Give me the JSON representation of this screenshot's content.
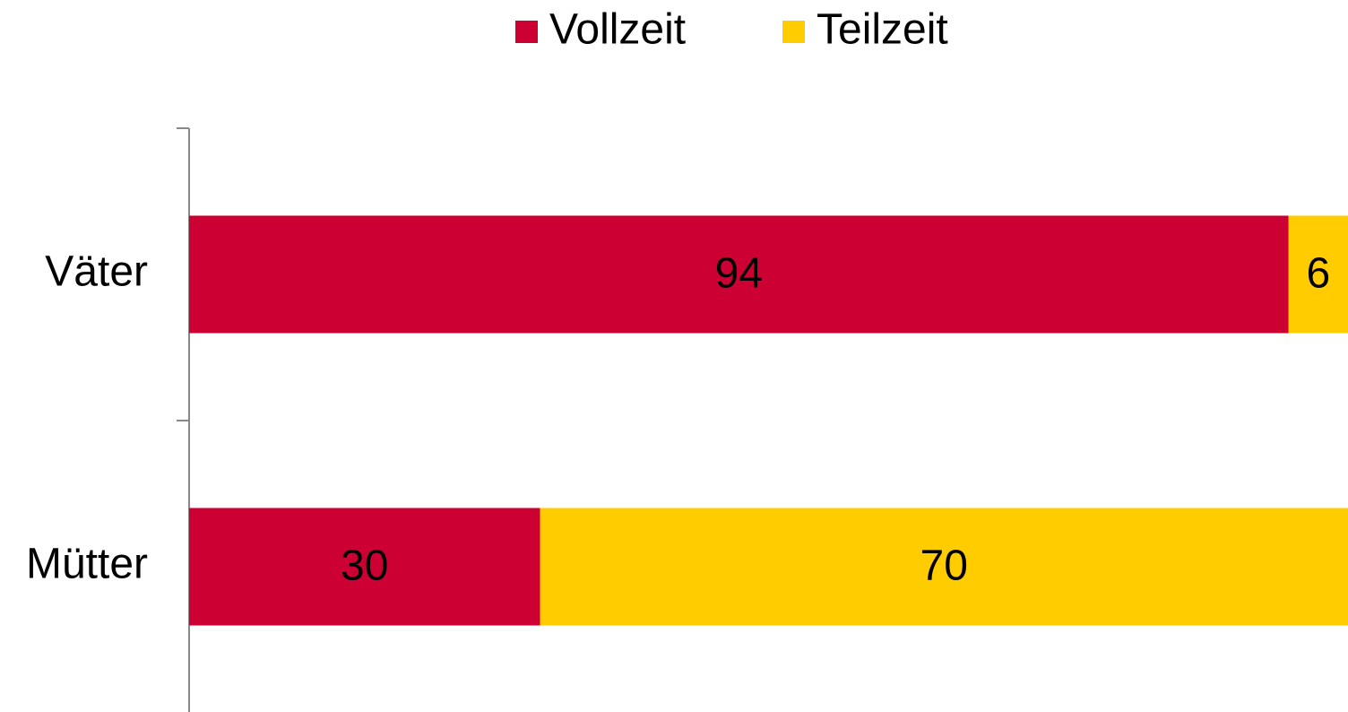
{
  "chart_data": {
    "type": "stacked_bar_horizontal",
    "categories": [
      "Väter",
      "Mütter"
    ],
    "series": [
      {
        "name": "Vollzeit",
        "color": "#cc0033",
        "values": [
          94,
          30
        ]
      },
      {
        "name": "Teilzeit",
        "color": "#ffcc00",
        "values": [
          6,
          70
        ]
      }
    ],
    "xlim": [
      0,
      100
    ],
    "legend": "top"
  }
}
